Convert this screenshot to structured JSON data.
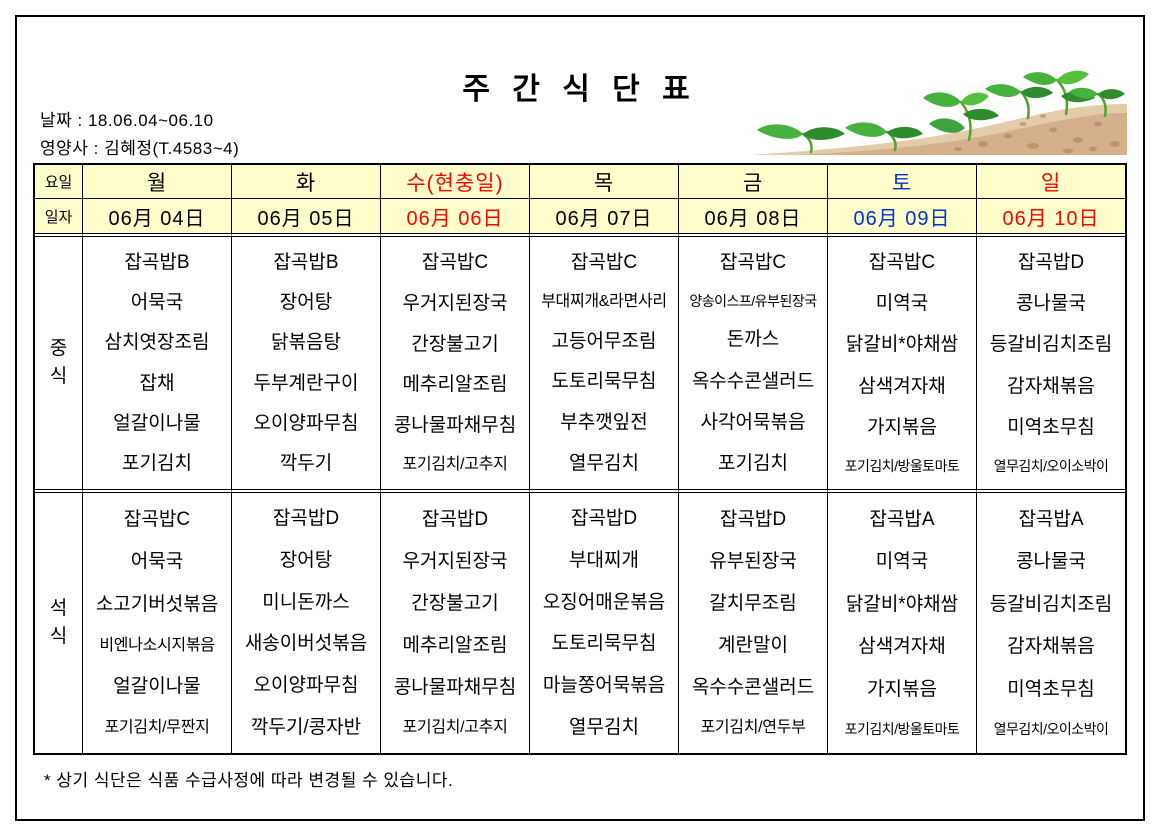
{
  "page": {
    "title": "주 간 식 단 표",
    "date_line": "날짜 : 18.06.04~06.10",
    "nutritionist_line": "영양사 : 김혜정(T.4583~4)",
    "footnote": "* 상기 식단은 식품 수급사정에 따라 변경될 수 있습니다."
  },
  "colors": {
    "header_bg": "#FFFFCC",
    "holiday_red": "#FF0000",
    "saturday_blue": "#0033CC",
    "border": "#000000"
  },
  "decoration": {
    "name": "seedlings-growing-from-soil-illustration"
  },
  "table": {
    "corner_labels": {
      "day_row": "요일",
      "date_row": "일자"
    },
    "meal_labels": {
      "lunch": "중식",
      "dinner": "석식"
    },
    "days": [
      {
        "name": "월",
        "date": "06月 04日",
        "color": "black"
      },
      {
        "name": "화",
        "date": "06月 05日",
        "color": "black"
      },
      {
        "name": "수(현충일)",
        "date": "06月 06日",
        "color": "red"
      },
      {
        "name": "목",
        "date": "06月 07日",
        "color": "black"
      },
      {
        "name": "금",
        "date": "06月 08日",
        "color": "black"
      },
      {
        "name": "토",
        "date": "06月 09日",
        "color": "blue"
      },
      {
        "name": "일",
        "date": "06月 10日",
        "color": "red"
      }
    ],
    "lunch": [
      [
        "잡곡밥B",
        "어묵국",
        "삼치엿장조림",
        "잡채",
        "얼갈이나물",
        "포기김치"
      ],
      [
        "잡곡밥B",
        "장어탕",
        "닭볶음탕",
        "두부계란구이",
        "오이양파무침",
        "깍두기"
      ],
      [
        "잡곡밥C",
        "우거지된장국",
        "간장불고기",
        "메추리알조림",
        "콩나물파채무침",
        "포기김치/고추지"
      ],
      [
        "잡곡밥C",
        "부대찌개&라면사리",
        "고등어무조림",
        "도토리묵무침",
        "부추깻잎전",
        "열무김치"
      ],
      [
        "잡곡밥C",
        "양송이스프/유부된장국",
        "돈까스",
        "옥수수콘샐러드",
        "사각어묵볶음",
        "포기김치"
      ],
      [
        "잡곡밥C",
        "미역국",
        "닭갈비*야채쌈",
        "삼색겨자채",
        "가지볶음",
        "포기김치/방울토마토"
      ],
      [
        "잡곡밥D",
        "콩나물국",
        "등갈비김치조림",
        "감자채볶음",
        "미역초무침",
        "열무김치/오이소박이"
      ]
    ],
    "dinner": [
      [
        "잡곡밥C",
        "어묵국",
        "소고기버섯볶음",
        "비엔나소시지볶음",
        "얼갈이나물",
        "포기김치/무짠지"
      ],
      [
        "잡곡밥D",
        "장어탕",
        "미니돈까스",
        "새송이버섯볶음",
        "오이양파무침",
        "깍두기/콩자반"
      ],
      [
        "잡곡밥D",
        "우거지된장국",
        "간장불고기",
        "메추리알조림",
        "콩나물파채무침",
        "포기김치/고추지"
      ],
      [
        "잡곡밥D",
        "부대찌개",
        "오징어매운볶음",
        "도토리묵무침",
        "마늘쫑어묵볶음",
        "열무김치"
      ],
      [
        "잡곡밥D",
        "유부된장국",
        "갈치무조림",
        "계란말이",
        "옥수수콘샐러드",
        "포기김치/연두부"
      ],
      [
        "잡곡밥A",
        "미역국",
        "닭갈비*야채쌈",
        "삼색겨자채",
        "가지볶음",
        "포기김치/방울토마토"
      ],
      [
        "잡곡밥A",
        "콩나물국",
        "등갈비김치조림",
        "감자채볶음",
        "미역초무침",
        "열무김치/오이소박이"
      ]
    ]
  }
}
